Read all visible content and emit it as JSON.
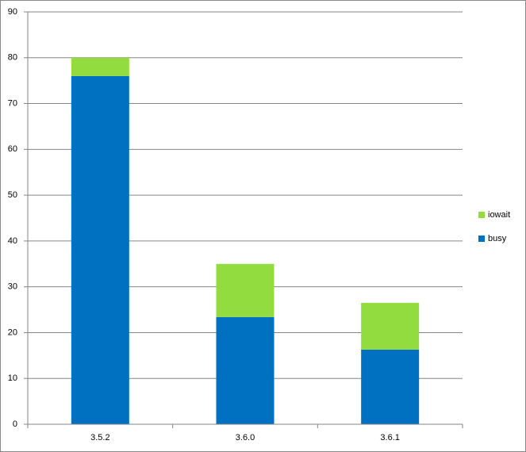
{
  "chart_data": {
    "type": "stacked_bar",
    "categories": [
      "3.5.2",
      "3.6.0",
      "3.6.1"
    ],
    "series": [
      {
        "name": "busy",
        "color": "#0070c0",
        "values": [
          76,
          23.4,
          16.3
        ]
      },
      {
        "name": "iowait",
        "color": "#92dc3f",
        "values": [
          4,
          11.6,
          10.2
        ]
      }
    ],
    "ylim": [
      0,
      90
    ],
    "yticks": [
      0,
      10,
      20,
      30,
      40,
      50,
      60,
      70,
      80,
      90
    ],
    "grid": true,
    "legend": "right"
  }
}
